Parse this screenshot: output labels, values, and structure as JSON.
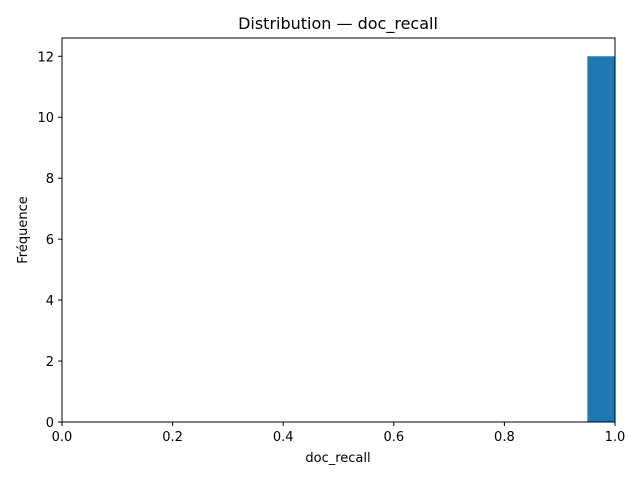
{
  "chart_data": {
    "type": "bar",
    "title": "Distribution — doc_recall",
    "xlabel": "doc_recall",
    "ylabel": "Fréquence",
    "xlim": [
      0.0,
      1.0
    ],
    "ylim": [
      0,
      12.6
    ],
    "grid": false,
    "color": "#1f77b4",
    "bins": [
      {
        "x0": 0.95,
        "x1": 1.0,
        "count": 12
      }
    ],
    "x_ticks": [
      0.0,
      0.2,
      0.4,
      0.6,
      0.8,
      1.0
    ],
    "x_tick_labels": [
      "0.0",
      "0.2",
      "0.4",
      "0.6",
      "0.8",
      "1.0"
    ],
    "y_ticks": [
      0,
      2,
      4,
      6,
      8,
      10,
      12
    ],
    "y_tick_labels": [
      "0",
      "2",
      "4",
      "6",
      "8",
      "10",
      "12"
    ]
  }
}
